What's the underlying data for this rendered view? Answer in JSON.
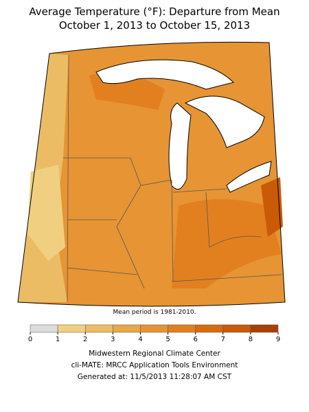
{
  "title": [
    "Average Temperature (°F): Departure from Mean",
    "October 1, 2013 to October 15, 2013"
  ],
  "note": "Mean period is 1981-2010.",
  "colorbar": {
    "ticks": [
      0,
      1,
      2,
      3,
      4,
      5,
      6,
      7,
      8,
      9
    ],
    "colors": [
      "#dcdcdc",
      "#f0d080",
      "#ecbc64",
      "#e8a848",
      "#e69434",
      "#e28020",
      "#d66c10",
      "#c85a08",
      "#a84000"
    ]
  },
  "footer": [
    "Midwestern Regional Climate Center",
    "cli-MATE: MRCC Application Tools Environment",
    "Generated at: 11/5/2013 11:28:07 AM CST"
  ]
}
